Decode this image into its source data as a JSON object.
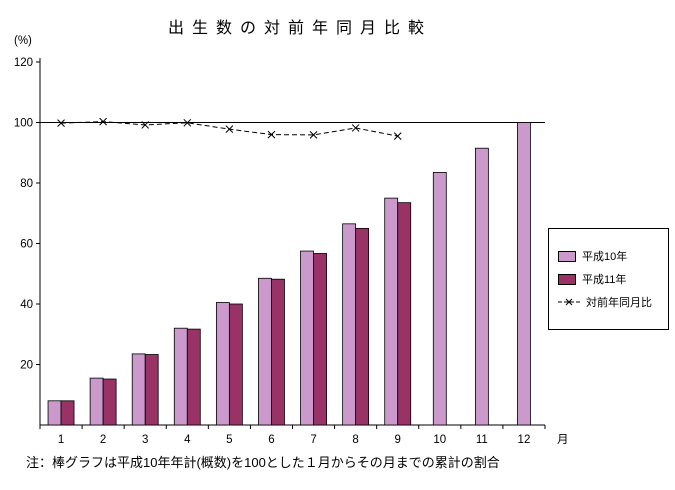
{
  "title": "出生数の対前年同月比較",
  "note": "注：棒グラフは平成10年年計(概数)を100とした１月からその月までの累計の割合",
  "chart_data": {
    "type": "bar",
    "combo": "bar+line",
    "title": "出生数の対前年同月比較",
    "categories": [
      "1",
      "2",
      "3",
      "4",
      "5",
      "6",
      "7",
      "8",
      "9",
      "10",
      "11",
      "12"
    ],
    "xlabel": "月",
    "ylabel": "(%)",
    "ylim": [
      0,
      120
    ],
    "yticks": [
      20,
      40,
      60,
      80,
      100,
      120
    ],
    "refline": 100,
    "legend_position": "right",
    "grid": "off",
    "series": [
      {
        "name": "平成10年",
        "type": "bar",
        "color": "#cc99cc",
        "values": [
          8,
          15.5,
          23.5,
          32,
          40.5,
          48.5,
          57.5,
          66.5,
          75,
          83.5,
          91.5,
          100
        ]
      },
      {
        "name": "平成11年",
        "type": "bar",
        "color": "#993366",
        "values": [
          8,
          15.2,
          23.3,
          31.7,
          40,
          48.2,
          56.7,
          65,
          73.5,
          null,
          null,
          null
        ]
      },
      {
        "name": "対前年同月比",
        "type": "line",
        "color": "#000000",
        "marker": "x",
        "dashed": true,
        "values": [
          99.8,
          100.3,
          99.2,
          99.9,
          97.8,
          96,
          95.9,
          98.2,
          95.5,
          null,
          null,
          null
        ]
      }
    ]
  }
}
